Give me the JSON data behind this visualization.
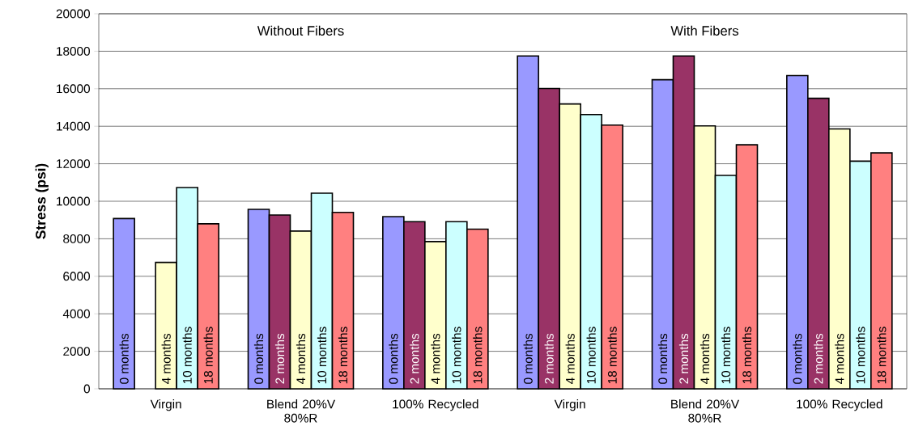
{
  "chart_data": {
    "type": "bar",
    "ylabel": "Stress (psi)",
    "categories": [
      "Virgin",
      "Blend 20%V 80%R",
      "100% Recycled",
      "Virgin",
      "Blend 20%V 80%R",
      "100% Recycled"
    ],
    "series": [
      {
        "name": "0 months",
        "color": "#9999ff",
        "values": [
          9080,
          9570,
          9180,
          17750,
          16480,
          16700
        ]
      },
      {
        "name": "2 months",
        "color": "#993366",
        "values": [
          null,
          9270,
          8910,
          16010,
          17750,
          15490
        ]
      },
      {
        "name": "4 months",
        "color": "#ffffcc",
        "values": [
          6740,
          8410,
          7850,
          15190,
          14020,
          13860
        ]
      },
      {
        "name": "10 months",
        "color": "#ccffff",
        "values": [
          10730,
          10430,
          8910,
          14620,
          11380,
          12140
        ]
      },
      {
        "name": "18 months",
        "color": "#ff8080",
        "values": [
          8800,
          9410,
          8510,
          14060,
          13010,
          12580
        ]
      }
    ],
    "annotations": [
      "Without Fibers",
      "With Fibers"
    ],
    "ylim": [
      0,
      20000
    ],
    "yticks": [
      0,
      2000,
      4000,
      6000,
      8000,
      10000,
      12000,
      14000,
      16000,
      18000,
      20000
    ],
    "grid": "y"
  }
}
